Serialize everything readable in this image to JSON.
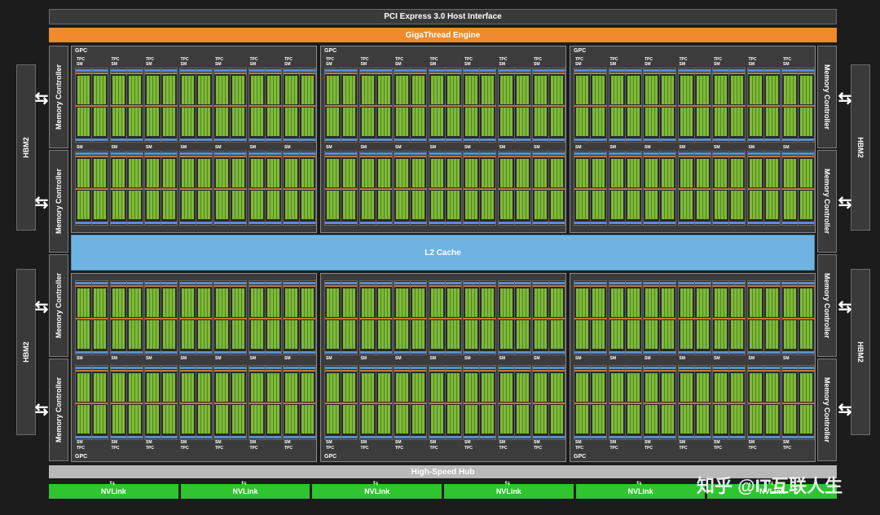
{
  "header": {
    "pcie_label": "PCI Express 3.0 Host Interface",
    "giga_label": "GigaThread Engine"
  },
  "hbm_label": "HBM2",
  "memory_controller_label": "Memory Controller",
  "l2_label": "L2 Cache",
  "gpc_label": "GPC",
  "tpc_label": "TPC",
  "sm_label": "SM",
  "hub_label": "High-Speed Hub",
  "nvlink_label": "NVLink",
  "nvlink_count": 6,
  "watermark": "知乎 @IT互联人生",
  "colors": {
    "giga": "#f08a2c",
    "l2": "#6fb3e0",
    "nvlink": "#2ec52e",
    "core": "#7fb83a",
    "background": "#1c1c1c"
  }
}
